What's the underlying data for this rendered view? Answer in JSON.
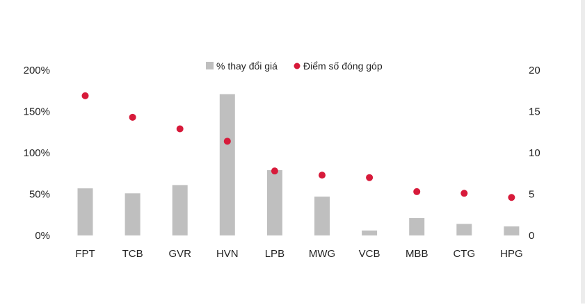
{
  "chart_data": {
    "type": "bar",
    "categories": [
      "FPT",
      "TCB",
      "GVR",
      "HVN",
      "LPB",
      "MWG",
      "VCB",
      "MBB",
      "CTG",
      "HPG"
    ],
    "series": [
      {
        "name": "% thay đổi giá",
        "type": "bar",
        "axis": "left",
        "color": "#bfbfbf",
        "values": [
          57,
          51,
          61,
          171,
          79,
          47,
          6,
          21,
          14,
          11
        ]
      },
      {
        "name": "Điểm số đóng góp",
        "type": "scatter",
        "axis": "right",
        "color": "#d71a3a",
        "values": [
          16.9,
          14.3,
          12.9,
          11.4,
          7.8,
          7.3,
          7.0,
          5.3,
          5.1,
          4.6
        ]
      }
    ],
    "y_left": {
      "ylim": [
        0,
        200
      ],
      "ticks": [
        0,
        50,
        100,
        150,
        200
      ],
      "tick_labels": [
        "0%",
        "50%",
        "100%",
        "150%",
        "200%"
      ]
    },
    "y_right": {
      "ylim": [
        0,
        20
      ],
      "ticks": [
        0,
        5,
        10,
        15,
        20
      ],
      "tick_labels": [
        "0",
        "5",
        "10",
        "15",
        "20"
      ]
    },
    "legend": {
      "placement": "top-center"
    },
    "grid": false,
    "title": "",
    "xlabel": "",
    "ylabel": ""
  }
}
